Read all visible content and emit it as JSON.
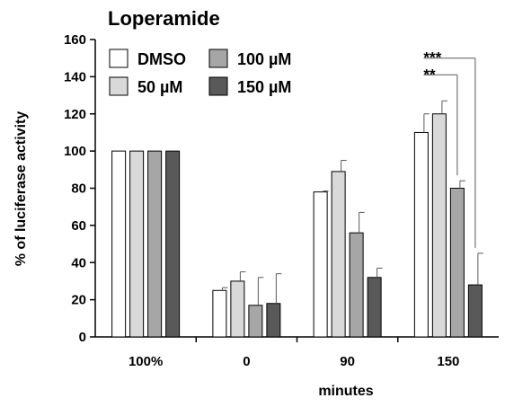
{
  "chart_data": {
    "type": "bar",
    "title": "Loperamide",
    "xlabel": "minutes",
    "ylabel": "% of luciferase activity",
    "ylim": [
      0,
      160
    ],
    "yticks": [
      "0",
      "20",
      "40",
      "60",
      "80",
      "100",
      "120",
      "140",
      "160"
    ],
    "categories": [
      "100%",
      "0",
      "90",
      "150"
    ],
    "grid": false,
    "legend_position": "top-left",
    "series": [
      {
        "name": "DMSO",
        "color": "#ffffff",
        "values": [
          100,
          25,
          78,
          110
        ],
        "errors": [
          0,
          1.5,
          0.5,
          10
        ]
      },
      {
        "name": "50 µM",
        "color": "#d9d9d9",
        "values": [
          100,
          30,
          89,
          120
        ],
        "errors": [
          0,
          5,
          6,
          7
        ]
      },
      {
        "name": "100 µM",
        "color": "#a6a6a6",
        "values": [
          100,
          17,
          56,
          80
        ],
        "errors": [
          0,
          15,
          11,
          4
        ]
      },
      {
        "name": "150 µM",
        "color": "#595959",
        "values": [
          100,
          18,
          32,
          28
        ],
        "errors": [
          0,
          16,
          5,
          17
        ]
      }
    ],
    "annotations": [
      {
        "text": "***",
        "group": "150",
        "from_series": "DMSO",
        "to_series": "150 µM"
      },
      {
        "text": "**",
        "group": "150",
        "from_series": "DMSO",
        "to_series": "100 µM"
      }
    ]
  }
}
